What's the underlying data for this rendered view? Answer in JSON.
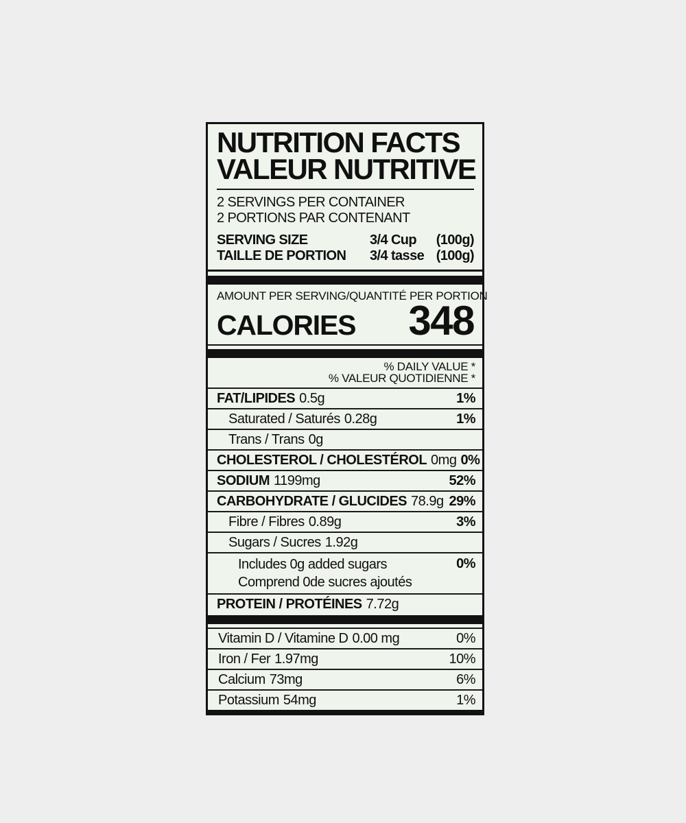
{
  "label": {
    "title_en": "NUTRITION FACTS",
    "title_fr": "VALEUR NUTRITIVE",
    "servings_per_container_en": "2 SERVINGS PER CONTAINER",
    "servings_per_container_fr": "2 PORTIONS PAR CONTENANT",
    "serving_size": {
      "label_en": "SERVING SIZE",
      "label_fr": "TAILLE DE PORTION",
      "amount_en": "3/4 Cup",
      "amount_fr": "3/4 tasse",
      "weight_en": "(100g)",
      "weight_fr": "(100g)"
    },
    "amount_per_serving": "AMOUNT PER SERVING/QUANTITÉ PER PORTION",
    "calories": {
      "label": "CALORIES",
      "value": "348"
    },
    "daily_value_header_en": "% DAILY VALUE *",
    "daily_value_header_fr": "% VALEUR QUOTIDIENNE *",
    "nutrients": [
      {
        "name": "FAT/LIPIDES",
        "value": "0.5g",
        "percent": "1%"
      },
      {
        "name": "Saturated / Saturés",
        "value": "0.28g",
        "percent": "1%"
      },
      {
        "name": "Trans / Trans",
        "value": "0g",
        "percent": ""
      },
      {
        "name": "CHOLESTEROL / CHOLESTÉROL",
        "value": "0mg",
        "percent": "0%"
      },
      {
        "name": "SODIUM",
        "value": "1199mg",
        "percent": "52%"
      },
      {
        "name": "CARBOHYDRATE / GLUCIDES",
        "value": "78.9g",
        "percent": "29%"
      },
      {
        "name": "Fibre / Fibres",
        "value": "0.89g",
        "percent": "3%"
      },
      {
        "name": "Sugars / Sucres",
        "value": "1.92g",
        "percent": ""
      },
      {
        "line1": "Includes 0g added sugars",
        "line2": "Comprend 0de sucres ajoutés",
        "percent": "0%"
      },
      {
        "name": "PROTEIN / PROTÉINES",
        "value": "7.72g",
        "percent": ""
      }
    ],
    "micronutrients": [
      {
        "name": "Vitamin D / Vitamine D",
        "value": "0.00 mg",
        "percent": "0%"
      },
      {
        "name": "Iron / Fer",
        "value": "1.97mg",
        "percent": "10%"
      },
      {
        "name": "Calcium",
        "value": "73mg",
        "percent": "6%"
      },
      {
        "name": "Potassium",
        "value": "54mg",
        "percent": "1%"
      }
    ]
  }
}
